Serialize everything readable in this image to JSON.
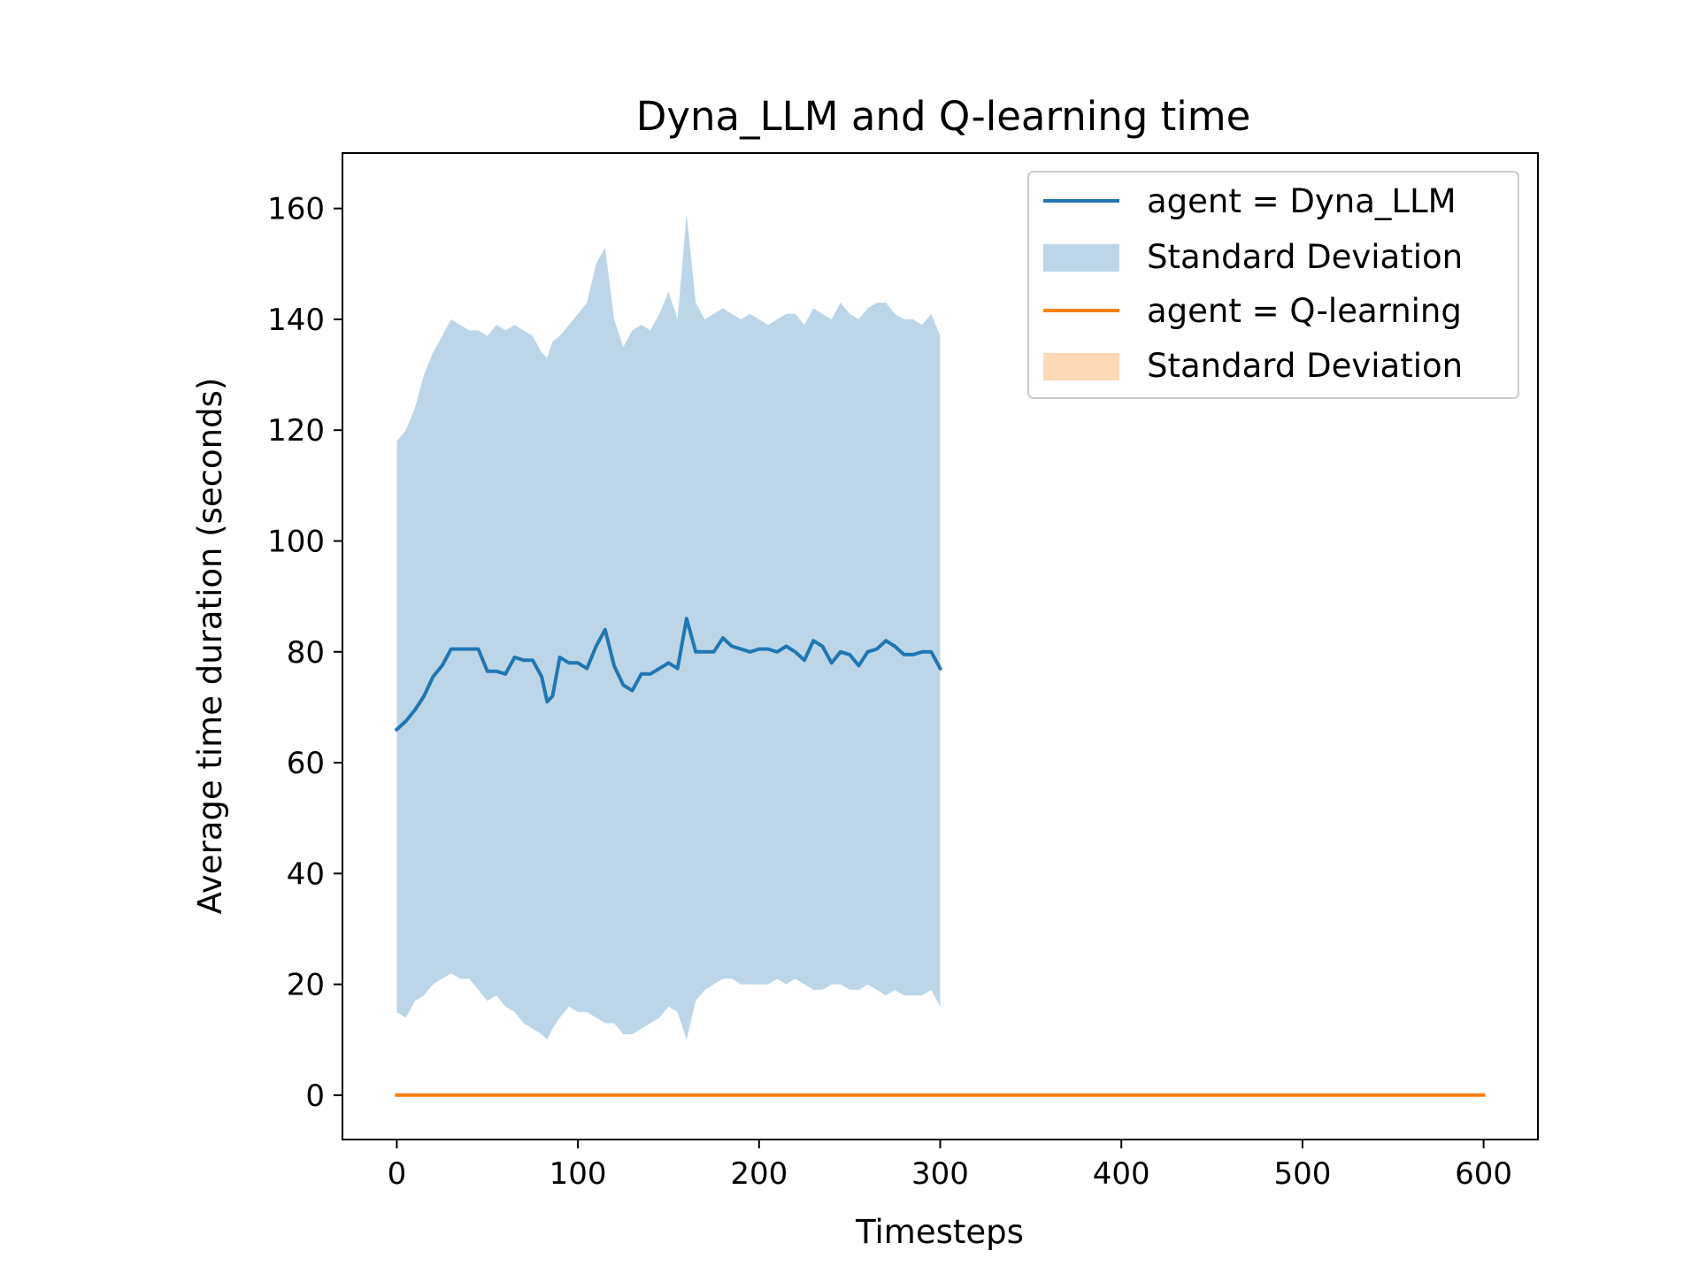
{
  "chart_data": {
    "type": "line",
    "title": "Dyna_LLM and Q-learning time",
    "xlabel": "Timesteps",
    "ylabel": "Average time duration (seconds)",
    "xlim": [
      -30,
      630
    ],
    "ylim": [
      -8,
      170
    ],
    "xticks": [
      0,
      100,
      200,
      300,
      400,
      500,
      600
    ],
    "yticks": [
      0,
      20,
      40,
      60,
      80,
      100,
      120,
      140,
      160
    ],
    "legend_position": "upper right",
    "grid": false,
    "series": [
      {
        "name": "agent = Dyna_LLM",
        "band_name": "Standard Deviation",
        "color": "#1f77b4",
        "band_color": "#bcd6e8",
        "x": [
          0,
          5,
          10,
          15,
          20,
          25,
          30,
          35,
          40,
          45,
          50,
          55,
          60,
          65,
          70,
          75,
          80,
          83,
          86,
          90,
          95,
          100,
          105,
          110,
          115,
          120,
          125,
          130,
          135,
          140,
          145,
          150,
          155,
          160,
          165,
          170,
          175,
          180,
          185,
          190,
          195,
          200,
          205,
          210,
          215,
          220,
          225,
          230,
          235,
          240,
          245,
          250,
          255,
          260,
          265,
          270,
          275,
          280,
          285,
          290,
          295,
          300
        ],
        "mean": [
          66,
          67.5,
          69.5,
          72,
          75.5,
          77.5,
          80.5,
          80.5,
          80.5,
          80.5,
          76.5,
          76.5,
          76,
          79,
          78.5,
          78.5,
          75.5,
          71,
          72,
          79,
          78,
          78,
          77,
          81,
          84,
          77.5,
          74,
          73,
          76,
          76,
          77,
          78,
          77,
          86,
          80,
          80,
          80,
          82.5,
          81,
          80.5,
          80,
          80.5,
          80.5,
          80,
          81,
          80,
          78.5,
          82,
          81,
          78,
          80,
          79.5,
          77.5,
          80,
          80.5,
          82,
          81,
          79.5,
          79.5,
          80,
          80,
          77
        ],
        "upper": [
          118,
          120,
          124,
          130,
          134,
          137,
          140,
          139,
          138,
          138,
          137,
          139,
          138,
          139,
          138,
          137,
          134,
          133,
          136,
          137,
          139,
          141,
          143,
          150,
          153,
          140,
          135,
          138,
          139,
          138,
          141,
          145,
          140,
          159,
          143,
          140,
          141,
          142,
          141,
          140,
          141,
          140,
          139,
          140,
          141,
          141,
          139,
          142,
          141,
          140,
          143,
          141,
          140,
          142,
          143,
          143,
          141,
          140,
          140,
          139,
          141,
          137
        ],
        "lower": [
          15,
          14,
          17,
          18,
          20,
          21,
          22,
          21,
          21,
          19,
          17,
          18,
          16,
          15,
          13,
          12,
          11,
          10,
          12,
          14,
          16,
          15,
          15,
          14,
          13,
          13,
          11,
          11,
          12,
          13,
          14,
          16,
          15,
          10,
          17,
          19,
          20,
          21,
          21,
          20,
          20,
          20,
          20,
          21,
          20,
          21,
          20,
          19,
          19,
          20,
          20,
          19,
          19,
          20,
          19,
          18,
          19,
          18,
          18,
          18,
          19,
          16
        ]
      },
      {
        "name": "agent = Q-learning",
        "band_name": "Standard Deviation",
        "color": "#ff7f0e",
        "band_color": "#ffd8b6",
        "x": [
          0,
          600
        ],
        "mean": [
          0.02,
          0.02
        ],
        "upper": [
          0.03,
          0.03
        ],
        "lower": [
          0.01,
          0.01
        ]
      }
    ]
  }
}
